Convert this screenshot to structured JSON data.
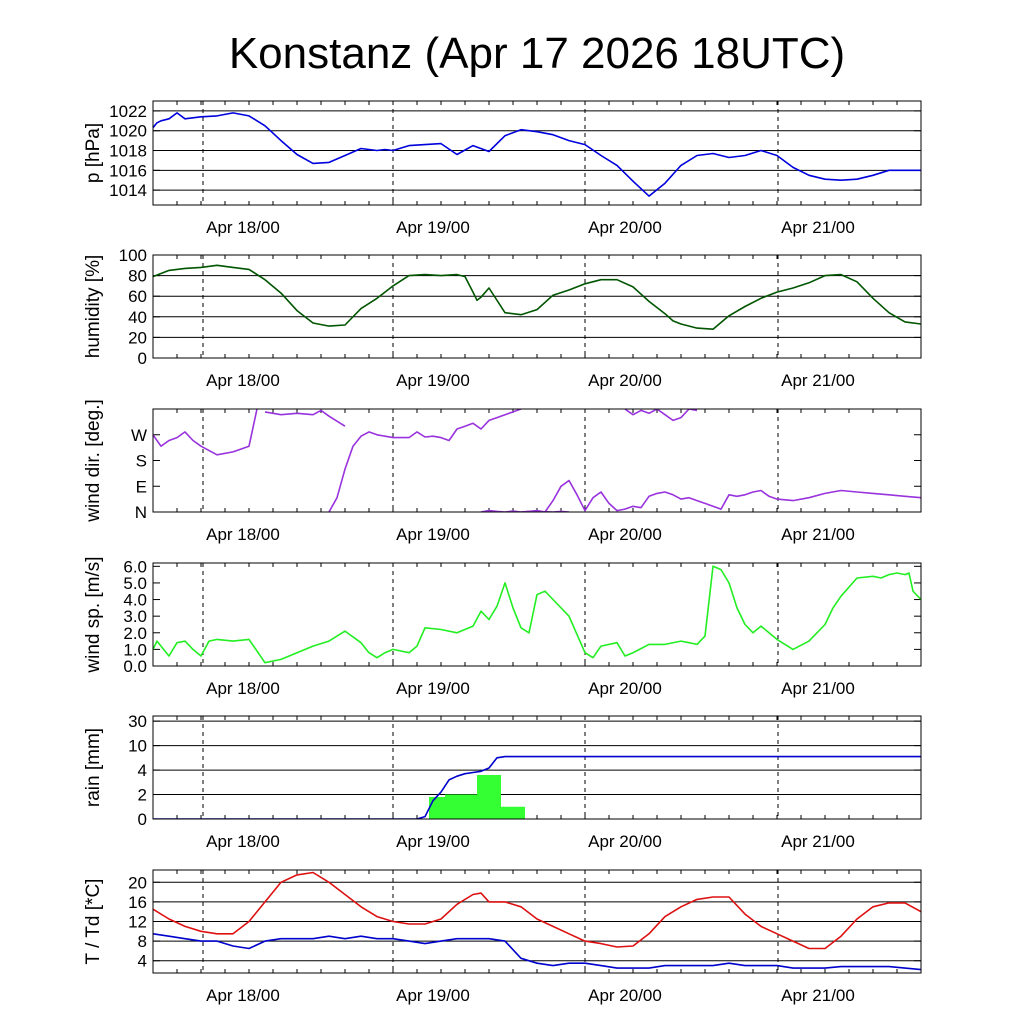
{
  "title": "Konstanz (Apr 17 2026 18UTC)",
  "x_tick_labels": [
    "Apr 18/00",
    "Apr 19/00",
    "Apr 20/00",
    "Apr 21/00"
  ],
  "colors": {
    "pressure": "#0000dd",
    "humidity": "#005500",
    "wind_dir": "#9933dd",
    "wind_speed": "#22ee22",
    "rain_bar": "#33ff33",
    "rain_total": "#0000cc",
    "temperature": "#dd1111",
    "dewpoint": "#0000cc"
  },
  "chart_data": [
    {
      "type": "line",
      "ylabel": "p [hPa]",
      "x_unit": "hours since Apr 17 18UTC",
      "xlim": [
        0,
        96
      ],
      "ylim": [
        1012.5,
        1023
      ],
      "yticks": [
        1014,
        1016,
        1018,
        1020,
        1022
      ],
      "ytick_labels": [
        "1014",
        "1016",
        "1018",
        "1020",
        "1022"
      ],
      "grid": true,
      "series": [
        {
          "name": "",
          "color_key": "pressure",
          "x": [
            0,
            0.5,
            1,
            2,
            3,
            4,
            6,
            8,
            10,
            12,
            14,
            16,
            18,
            20,
            22,
            24,
            26,
            28,
            29,
            30,
            32,
            34,
            36,
            38,
            40,
            42,
            44,
            46,
            48,
            50,
            52,
            54,
            56,
            58,
            60,
            62,
            64,
            66,
            68,
            70,
            72,
            74,
            76,
            78,
            80,
            82,
            84,
            86,
            88,
            90,
            92,
            94,
            96
          ],
          "y": [
            1020.3,
            1020.8,
            1021.0,
            1021.2,
            1021.8,
            1021.2,
            1021.4,
            1021.5,
            1021.8,
            1021.5,
            1020.5,
            1019.0,
            1017.6,
            1016.7,
            1016.8,
            1017.5,
            1018.2,
            1018.0,
            1018.1,
            1018.0,
            1018.5,
            1018.6,
            1018.7,
            1017.6,
            1018.5,
            1017.9,
            1019.5,
            1020.1,
            1019.9,
            1019.6,
            1019.0,
            1018.6,
            1017.5,
            1016.5,
            1014.9,
            1013.4,
            1014.7,
            1016.5,
            1017.5,
            1017.7,
            1017.3,
            1017.5,
            1018.0,
            1017.5,
            1016.3,
            1015.5,
            1015.1,
            1015.0,
            1015.1,
            1015.5,
            1016.0,
            1016.0,
            1016.0
          ]
        }
      ]
    },
    {
      "type": "line",
      "ylabel": "humidity [%]",
      "x_unit": "hours since Apr 17 18UTC",
      "xlim": [
        0,
        96
      ],
      "ylim": [
        0,
        100
      ],
      "yticks": [
        0,
        20,
        40,
        60,
        80,
        100
      ],
      "ytick_labels": [
        "0",
        "20",
        "40",
        "60",
        "80",
        "100"
      ],
      "grid": true,
      "series": [
        {
          "name": "",
          "color_key": "humidity",
          "x": [
            0,
            2,
            4,
            6,
            8,
            10,
            12,
            14,
            16,
            18,
            20,
            22,
            24,
            26,
            28,
            30,
            32,
            34,
            36,
            38,
            39,
            40,
            40.5,
            41,
            42,
            44,
            46,
            48,
            50,
            52,
            54,
            56,
            58,
            60,
            62,
            64,
            65,
            66,
            68,
            70,
            72,
            74,
            76,
            78,
            80,
            82,
            84,
            86,
            88,
            90,
            92,
            94,
            96
          ],
          "y": [
            79,
            85,
            87,
            88,
            90,
            88,
            86,
            76,
            63,
            46,
            34,
            31,
            32,
            48,
            58,
            70,
            80,
            81,
            80,
            81,
            79,
            64,
            56,
            59,
            68,
            44,
            42,
            47,
            61,
            66,
            72,
            76,
            76,
            69,
            55,
            43,
            36,
            33,
            29,
            28,
            41,
            50,
            58,
            64,
            68,
            73,
            80,
            81,
            74,
            58,
            44,
            35,
            33
          ]
        }
      ]
    },
    {
      "type": "line",
      "ylabel": "wind dir. [deg.]",
      "x_unit": "hours since Apr 17 18UTC",
      "xlim": [
        0,
        96
      ],
      "ylim": [
        0,
        360
      ],
      "yticks": [
        0,
        90,
        180,
        270
      ],
      "ytick_labels": [
        "N",
        "E",
        "S",
        "W"
      ],
      "grid": false,
      "series": [
        {
          "name": "",
          "color_key": "wind_dir",
          "segments": [
            {
              "x": [
                0,
                1,
                2,
                3,
                4,
                5,
                6,
                8,
                10,
                12,
                13
              ],
              "y": [
                270,
                230,
                250,
                260,
                280,
                250,
                230,
                200,
                210,
                230,
                360
              ]
            },
            {
              "x": [
                14,
                16,
                18,
                20,
                21,
                22,
                24
              ],
              "y": [
                350,
                340,
                345,
                340,
                355,
                335,
                300
              ]
            },
            {
              "x": [
                22,
                23,
                24,
                25,
                26,
                27,
                28,
                29,
                30,
                32,
                33,
                34,
                35,
                36,
                37,
                38,
                39,
                40,
                41,
                42,
                43,
                44,
                45,
                46
              ],
              "y": [
                0,
                50,
                150,
                230,
                265,
                280,
                270,
                265,
                260,
                260,
                280,
                262,
                265,
                260,
                250,
                290,
                300,
                310,
                290,
                320,
                330,
                340,
                350,
                360
              ]
            },
            {
              "x": [
                46,
                47,
                48,
                49,
                50,
                51,
                52,
                53,
                54,
                55,
                56,
                57,
                58,
                59,
                60,
                61,
                62,
                63,
                64,
                65,
                66,
                67,
                68,
                69,
                70,
                71,
                72,
                73,
                74,
                75,
                76,
                77,
                78,
                80,
                82,
                84,
                86,
                88,
                90,
                92,
                94,
                96
              ],
              "y": [
                0,
                2,
                5,
                0,
                40,
                90,
                110,
                60,
                5,
                50,
                70,
                30,
                5,
                10,
                20,
                15,
                55,
                65,
                70,
                60,
                45,
                50,
                40,
                30,
                20,
                10,
                60,
                55,
                60,
                70,
                75,
                55,
                45,
                40,
                50,
                65,
                75,
                70,
                65,
                60,
                55,
                50
              ]
            },
            {
              "x": [
                59,
                60,
                61,
                62,
                63,
                64,
                65,
                66,
                67,
                68
              ],
              "y": [
                360,
                340,
                355,
                345,
                360,
                340,
                320,
                330,
                360,
                355
              ]
            },
            {
              "x": [
                41,
                42,
                43,
                44,
                45,
                46,
                47,
                48,
                49,
                50,
                51,
                52
              ],
              "y": [
                0,
                5,
                2,
                0,
                3,
                0,
                2,
                0,
                1,
                0,
                2,
                0
              ]
            }
          ]
        }
      ]
    },
    {
      "type": "line",
      "ylabel": "wind sp. [m/s]",
      "x_unit": "hours since Apr 17 18UTC",
      "xlim": [
        0,
        96
      ],
      "ylim": [
        0,
        6.2
      ],
      "yticks": [
        0,
        1,
        2,
        3,
        4,
        5,
        6
      ],
      "ytick_labels": [
        "0.0",
        "1.0",
        "2.0",
        "3.0",
        "4.0",
        "5.0",
        "6.0"
      ],
      "grid": false,
      "series": [
        {
          "name": "",
          "color_key": "wind_speed",
          "x": [
            0,
            0.5,
            1,
            2,
            3,
            4,
            5,
            6,
            7,
            8,
            10,
            12,
            14,
            16,
            18,
            20,
            22,
            24,
            26,
            27,
            28,
            29,
            30,
            32,
            33,
            34,
            36,
            38,
            40,
            41,
            42,
            43,
            44,
            45,
            46,
            47,
            48,
            49,
            50,
            52,
            54,
            55,
            56,
            58,
            59,
            60,
            62,
            64,
            66,
            67,
            68,
            69,
            70,
            71,
            72,
            73,
            74,
            75,
            76,
            77,
            78,
            80,
            82,
            84,
            85,
            86,
            88,
            90,
            91,
            92,
            93,
            94,
            94.5,
            95,
            96
          ],
          "y": [
            1.0,
            1.5,
            1.2,
            0.6,
            1.4,
            1.5,
            1.0,
            0.6,
            1.5,
            1.6,
            1.5,
            1.6,
            0.2,
            0.4,
            0.8,
            1.2,
            1.5,
            2.1,
            1.4,
            0.8,
            0.5,
            0.8,
            1.0,
            0.8,
            1.2,
            2.3,
            2.2,
            2.0,
            2.4,
            3.3,
            2.8,
            3.6,
            5.0,
            3.5,
            2.3,
            2.0,
            4.3,
            4.5,
            4.0,
            3.0,
            0.8,
            0.5,
            1.2,
            1.4,
            0.6,
            0.8,
            1.3,
            1.3,
            1.5,
            1.4,
            1.3,
            1.8,
            6.0,
            5.8,
            5.0,
            3.5,
            2.5,
            2.0,
            2.4,
            2.0,
            1.6,
            1.0,
            1.5,
            2.5,
            3.5,
            4.2,
            5.3,
            5.4,
            5.3,
            5.5,
            5.6,
            5.5,
            5.6,
            4.5,
            4.0
          ]
        }
      ]
    },
    {
      "type": "bar",
      "ylabel": "rain [mm]",
      "x_unit": "hours since Apr 17 18UTC",
      "xlim": [
        0,
        96
      ],
      "yscale": "custom",
      "yticks": [
        0,
        2,
        4,
        10,
        30
      ],
      "ytick_labels": [
        "0",
        "2",
        "4",
        "10",
        "30"
      ],
      "grid": true,
      "bars": [
        {
          "x_start": 34.5,
          "x_end": 37.5,
          "value": 1.8,
          "color_key": "rain_bar"
        },
        {
          "x_start": 36.5,
          "x_end": 42.0,
          "value": 2.0,
          "color_key": "rain_bar"
        },
        {
          "x_start": 40.5,
          "x_end": 43.5,
          "value": 3.6,
          "color_key": "rain_bar"
        },
        {
          "x_start": 43.5,
          "x_end": 46.5,
          "value": 1.0,
          "color_key": "rain_bar"
        }
      ],
      "series": [
        {
          "name": "",
          "color_key": "rain_total",
          "x": [
            0,
            33,
            34,
            35,
            36,
            37,
            38,
            39,
            40,
            41,
            42,
            43,
            44,
            96
          ],
          "y": [
            0,
            0,
            0.2,
            1.5,
            2.2,
            3.2,
            3.5,
            3.7,
            3.8,
            3.9,
            4.5,
            7.0,
            7.3,
            7.3
          ]
        }
      ]
    },
    {
      "type": "line",
      "ylabel": "T / Td [*C]",
      "x_unit": "hours since Apr 17 18UTC",
      "xlim": [
        0,
        96
      ],
      "ylim": [
        1.5,
        22.5
      ],
      "yticks": [
        4,
        8,
        12,
        16,
        20
      ],
      "ytick_labels": [
        "4",
        "8",
        "12",
        "16",
        "20"
      ],
      "grid": true,
      "series": [
        {
          "name": "",
          "color_key": "temperature",
          "x": [
            0,
            2,
            4,
            6,
            8,
            10,
            12,
            14,
            16,
            18,
            20,
            22,
            24,
            26,
            28,
            30,
            32,
            34,
            36,
            38,
            40,
            41,
            42,
            44,
            46,
            48,
            50,
            52,
            54,
            56,
            58,
            60,
            62,
            64,
            66,
            68,
            70,
            72,
            74,
            76,
            78,
            80,
            82,
            84,
            86,
            88,
            90,
            92,
            94,
            96
          ],
          "y": [
            14.5,
            12.5,
            11,
            10,
            9.5,
            9.5,
            12,
            16,
            20,
            21.5,
            22,
            20,
            17.5,
            15,
            13,
            12,
            11.5,
            11.5,
            12.5,
            15.5,
            17.5,
            17.8,
            16,
            16,
            15,
            12.5,
            11,
            9.5,
            8,
            7.5,
            6.8,
            7,
            9.5,
            13,
            15,
            16.5,
            17,
            17,
            13.5,
            11,
            9.5,
            8,
            6.5,
            6.5,
            9,
            12.5,
            15,
            15.8,
            15.8,
            14
          ]
        },
        {
          "name": "",
          "color_key": "dewpoint",
          "x": [
            0,
            2,
            4,
            6,
            8,
            10,
            12,
            14,
            16,
            18,
            20,
            22,
            24,
            26,
            28,
            30,
            32,
            34,
            36,
            38,
            40,
            42,
            44,
            46,
            48,
            50,
            52,
            54,
            56,
            58,
            60,
            62,
            64,
            66,
            68,
            70,
            72,
            74,
            76,
            78,
            80,
            82,
            84,
            86,
            88,
            90,
            92,
            94,
            96
          ],
          "y": [
            9.5,
            9,
            8.5,
            8,
            8,
            7,
            6.5,
            8,
            8.5,
            8.5,
            8.5,
            9,
            8.5,
            9,
            8.5,
            8.5,
            8,
            7.5,
            8,
            8.5,
            8.5,
            8.5,
            8,
            4.5,
            3.5,
            3,
            3.5,
            3.5,
            3,
            2.5,
            2.5,
            2.5,
            3,
            3,
            3,
            3,
            3.5,
            3,
            3,
            3,
            2.5,
            2.5,
            2.5,
            2.8,
            2.8,
            2.8,
            2.8,
            2.5,
            2.2
          ]
        }
      ]
    }
  ]
}
